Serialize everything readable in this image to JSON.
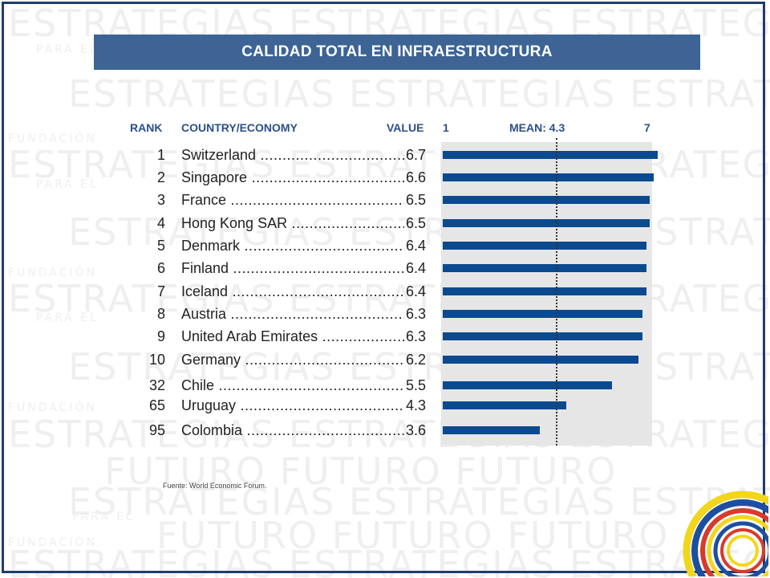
{
  "title": "CALIDAD  TOTAL EN INFRAESTRUCTURA",
  "source": "Fuente: World Economic Forum.",
  "watermark": {
    "big": "ESTRATEGIAS ESTRATEGIAS ESTRATEGIAS",
    "small": "PARA EL",
    "small2": "FUNDACIÓN",
    "future": "FUTURO FUTURO FUTURO"
  },
  "headers": {
    "rank": "RANK",
    "country": "COUNTRY/ECONOMY",
    "value": "VALUE",
    "scale_min": "1",
    "mean": "MEAN: 4.3",
    "scale_max": "7"
  },
  "colors": {
    "bar": "#0b4a8f",
    "title_bg": "#3d6494",
    "header_text": "#2b4f8c",
    "track": "#e6e6e6"
  },
  "rows": [
    {
      "rank": "1",
      "country": "Switzerland",
      "value": "6.7"
    },
    {
      "rank": "2",
      "country": "Singapore",
      "value": "6.6"
    },
    {
      "rank": "3",
      "country": "France",
      "value": "6.5"
    },
    {
      "rank": "4",
      "country": "Hong Kong SAR",
      "value": "6.5"
    },
    {
      "rank": "5",
      "country": "Denmark",
      "value": "6.4"
    },
    {
      "rank": "6",
      "country": "Finland",
      "value": "6.4"
    },
    {
      "rank": "7",
      "country": "Iceland",
      "value": "6.4"
    },
    {
      "rank": "8",
      "country": "Austria",
      "value": "6.3"
    },
    {
      "rank": "9",
      "country": "United Arab Emirates",
      "value": "6.3"
    },
    {
      "rank": "10",
      "country": "Germany",
      "value": "6.2"
    },
    {
      "rank": "32",
      "country": "Chile",
      "value": "5.5"
    },
    {
      "rank": "65",
      "country": "Uruguay",
      "value": "4.3"
    },
    {
      "rank": "95",
      "country": "Colombia",
      "value": "3.6"
    }
  ],
  "chart_data": {
    "type": "bar",
    "orientation": "horizontal",
    "title": "CALIDAD  TOTAL EN INFRAESTRUCTURA",
    "categories": [
      "Switzerland",
      "Singapore",
      "France",
      "Hong Kong SAR",
      "Denmark",
      "Finland",
      "Iceland",
      "Austria",
      "United Arab Emirates",
      "Germany",
      "Chile",
      "Uruguay",
      "Colombia"
    ],
    "ranks": [
      1,
      2,
      3,
      4,
      5,
      6,
      7,
      8,
      9,
      10,
      32,
      65,
      95
    ],
    "values": [
      6.7,
      6.6,
      6.5,
      6.5,
      6.4,
      6.4,
      6.4,
      6.3,
      6.3,
      6.2,
      5.5,
      4.3,
      3.6
    ],
    "xlim": [
      1,
      7
    ],
    "mean": 4.3,
    "mean_label": "MEAN: 4.3",
    "grid": false,
    "legend": "none"
  }
}
